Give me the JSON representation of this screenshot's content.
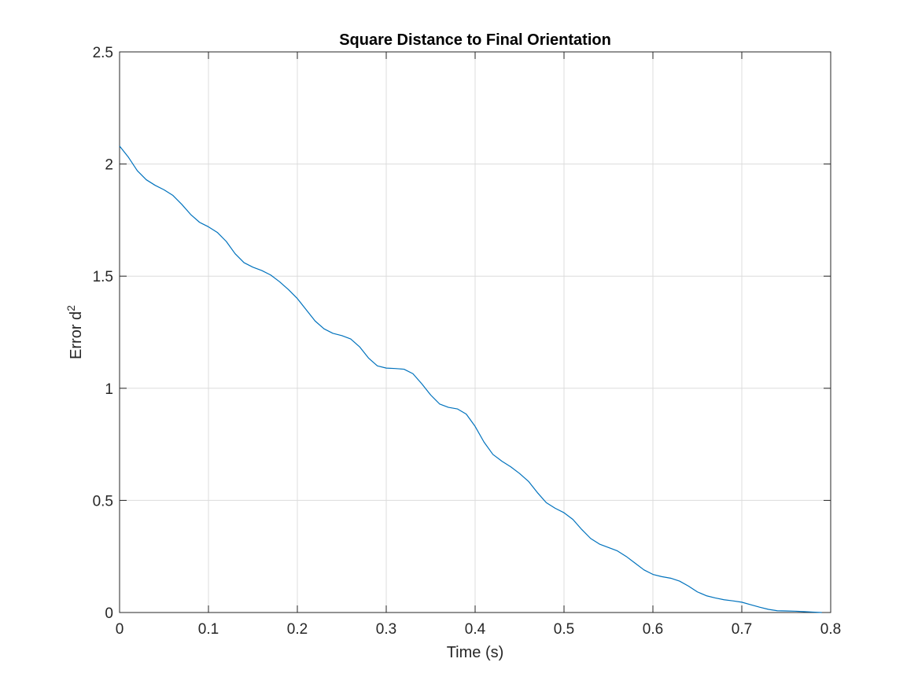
{
  "chart_data": {
    "type": "line",
    "title": "Square Distance to Final Orientation",
    "xlabel": "Time (s)",
    "ylabel": "Error d",
    "ylabel_superscript": "2",
    "xlim": [
      0,
      0.8
    ],
    "ylim": [
      0,
      2.5
    ],
    "x_ticks": [
      0,
      0.1,
      0.2,
      0.3,
      0.4,
      0.5,
      0.6,
      0.7,
      0.8
    ],
    "x_tick_labels": [
      "0",
      "0.1",
      "0.2",
      "0.3",
      "0.4",
      "0.5",
      "0.6",
      "0.7",
      "0.8"
    ],
    "y_ticks": [
      0,
      0.5,
      1,
      1.5,
      2,
      2.5
    ],
    "y_tick_labels": [
      "0",
      "0.5",
      "1",
      "1.5",
      "2",
      "2.5"
    ],
    "grid": true,
    "box": true,
    "colors": {
      "line": "#0072BD",
      "grid": "#dcdcdc",
      "axis": "#262626"
    },
    "series": [
      {
        "x": [
          0,
          0.01,
          0.02,
          0.03,
          0.04,
          0.05,
          0.06,
          0.07,
          0.08,
          0.09,
          0.1,
          0.11,
          0.12,
          0.13,
          0.14,
          0.15,
          0.16,
          0.17,
          0.18,
          0.19,
          0.2,
          0.21,
          0.22,
          0.23,
          0.24,
          0.25,
          0.26,
          0.27,
          0.28,
          0.29,
          0.3,
          0.31,
          0.32,
          0.33,
          0.34,
          0.35,
          0.36,
          0.37,
          0.38,
          0.39,
          0.4,
          0.41,
          0.42,
          0.43,
          0.44,
          0.45,
          0.46,
          0.47,
          0.48,
          0.49,
          0.5,
          0.51,
          0.52,
          0.53,
          0.54,
          0.55,
          0.56,
          0.57,
          0.58,
          0.59,
          0.6,
          0.61,
          0.62,
          0.63,
          0.64,
          0.65,
          0.66,
          0.67,
          0.68,
          0.69,
          0.7,
          0.71,
          0.72,
          0.73,
          0.74,
          0.75,
          0.76,
          0.77,
          0.78,
          0.79
        ],
        "y": [
          2.08,
          2.03,
          1.97,
          1.93,
          1.905,
          1.885,
          1.86,
          1.82,
          1.775,
          1.74,
          1.72,
          1.695,
          1.655,
          1.6,
          1.56,
          1.54,
          1.525,
          1.505,
          1.475,
          1.44,
          1.4,
          1.35,
          1.3,
          1.265,
          1.245,
          1.235,
          1.22,
          1.185,
          1.135,
          1.1,
          1.09,
          1.088,
          1.085,
          1.065,
          1.02,
          0.97,
          0.93,
          0.915,
          0.908,
          0.885,
          0.83,
          0.76,
          0.705,
          0.675,
          0.65,
          0.62,
          0.585,
          0.535,
          0.49,
          0.465,
          0.445,
          0.415,
          0.37,
          0.33,
          0.305,
          0.29,
          0.275,
          0.25,
          0.22,
          0.19,
          0.17,
          0.16,
          0.153,
          0.14,
          0.118,
          0.092,
          0.075,
          0.065,
          0.057,
          0.052,
          0.046,
          0.035,
          0.024,
          0.014,
          0.008,
          0.007,
          0.006,
          0.004,
          0.002,
          0
        ]
      }
    ]
  }
}
